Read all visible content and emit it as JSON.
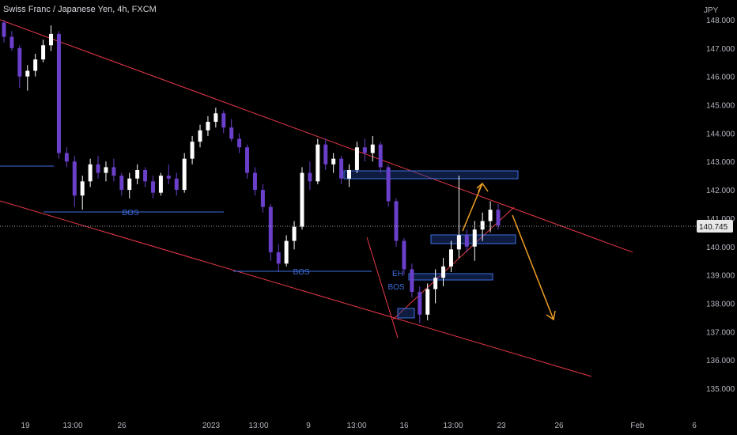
{
  "header": {
    "title": "Swiss Franc / Japanese Yen, 4h, FXCM",
    "currency": "JPY"
  },
  "chart_data": {
    "type": "candlestick",
    "symbol": "CHFJPY",
    "ylim": [
      134.5,
      148.2
    ],
    "y_ticks": [
      "148.000",
      "147.000",
      "146.000",
      "145.000",
      "144.000",
      "143.000",
      "142.000",
      "141.000",
      "140.000",
      "139.000",
      "138.000",
      "137.000",
      "136.000",
      "135.000"
    ],
    "x_ticks": [
      "19",
      "13:00",
      "26",
      "2023",
      "13:00",
      "9",
      "13:00",
      "16",
      "13:00",
      "23",
      "26",
      "Feb",
      "6"
    ],
    "last_price": "140.745",
    "colors": {
      "up": "#ffffff",
      "down": "#6a3fc9",
      "channel": "#e8394a",
      "projection": "#f0a024",
      "annotation": "#3d6fe0",
      "zone": "#1f3f8f"
    },
    "candles": [
      [
        147.9,
        148.0,
        147.2,
        147.4
      ],
      [
        147.4,
        147.6,
        146.9,
        147.0
      ],
      [
        147.0,
        147.1,
        145.6,
        146.0
      ],
      [
        146.0,
        146.4,
        145.5,
        146.2
      ],
      [
        146.2,
        146.8,
        146.0,
        146.6
      ],
      [
        146.6,
        147.3,
        146.5,
        147.1
      ],
      [
        147.1,
        147.8,
        146.9,
        147.5
      ],
      [
        147.5,
        147.6,
        143.1,
        143.3
      ],
      [
        143.3,
        143.5,
        142.8,
        143.0
      ],
      [
        143.0,
        143.2,
        141.4,
        141.8
      ],
      [
        141.8,
        142.5,
        141.3,
        142.3
      ],
      [
        142.3,
        143.1,
        142.1,
        142.9
      ],
      [
        142.9,
        143.2,
        142.4,
        142.6
      ],
      [
        142.6,
        143.0,
        142.3,
        142.8
      ],
      [
        142.8,
        143.1,
        142.3,
        142.5
      ],
      [
        142.5,
        142.6,
        141.8,
        142.0
      ],
      [
        142.0,
        142.6,
        141.7,
        142.4
      ],
      [
        142.4,
        142.9,
        142.2,
        142.7
      ],
      [
        142.7,
        142.8,
        142.1,
        142.3
      ],
      [
        142.3,
        142.5,
        141.7,
        141.9
      ],
      [
        141.9,
        142.6,
        141.8,
        142.5
      ],
      [
        142.5,
        142.9,
        142.2,
        142.4
      ],
      [
        142.4,
        142.6,
        141.8,
        142.0
      ],
      [
        142.0,
        143.3,
        141.9,
        143.1
      ],
      [
        143.1,
        143.9,
        142.9,
        143.7
      ],
      [
        143.7,
        144.3,
        143.5,
        144.1
      ],
      [
        144.1,
        144.6,
        143.9,
        144.4
      ],
      [
        144.4,
        144.9,
        144.2,
        144.7
      ],
      [
        144.7,
        144.8,
        144.0,
        144.2
      ],
      [
        144.2,
        144.5,
        143.7,
        143.8
      ],
      [
        143.8,
        144.0,
        143.3,
        143.5
      ],
      [
        143.5,
        143.6,
        142.4,
        142.6
      ],
      [
        142.6,
        142.8,
        141.8,
        142.0
      ],
      [
        142.0,
        142.2,
        141.2,
        141.4
      ],
      [
        141.4,
        141.5,
        139.5,
        139.8
      ],
      [
        139.8,
        140.1,
        139.1,
        139.4
      ],
      [
        139.4,
        140.4,
        139.3,
        140.2
      ],
      [
        140.2,
        140.9,
        139.9,
        140.7
      ],
      [
        140.7,
        142.8,
        140.6,
        142.6
      ],
      [
        142.6,
        143.0,
        142.0,
        142.3
      ],
      [
        142.3,
        143.8,
        142.2,
        143.6
      ],
      [
        143.6,
        143.8,
        142.7,
        142.9
      ],
      [
        142.9,
        143.3,
        142.6,
        143.1
      ],
      [
        143.1,
        143.2,
        142.2,
        142.4
      ],
      [
        142.4,
        142.9,
        142.1,
        142.7
      ],
      [
        142.7,
        143.7,
        142.6,
        143.5
      ],
      [
        143.5,
        143.8,
        143.0,
        143.3
      ],
      [
        143.3,
        143.9,
        143.0,
        143.6
      ],
      [
        143.6,
        143.7,
        142.6,
        142.8
      ],
      [
        142.8,
        142.9,
        141.4,
        141.6
      ],
      [
        141.6,
        141.7,
        140.0,
        140.2
      ],
      [
        140.2,
        140.3,
        139.0,
        139.2
      ],
      [
        139.2,
        139.4,
        138.2,
        138.4
      ],
      [
        138.4,
        138.6,
        137.3,
        137.6
      ],
      [
        137.6,
        138.7,
        137.4,
        138.5
      ],
      [
        138.5,
        139.2,
        138.0,
        138.9
      ],
      [
        138.9,
        139.6,
        138.6,
        139.3
      ],
      [
        139.3,
        140.2,
        139.1,
        139.9
      ],
      [
        139.9,
        142.5,
        139.6,
        140.4
      ],
      [
        140.4,
        140.6,
        139.8,
        140.0
      ],
      [
        140.0,
        140.9,
        139.5,
        140.6
      ],
      [
        140.6,
        141.2,
        140.2,
        140.9
      ],
      [
        140.9,
        141.6,
        140.5,
        141.3
      ],
      [
        141.3,
        141.5,
        140.6,
        140.745
      ]
    ],
    "overlays": {
      "channel_upper": [
        [
          0,
          148.0
        ],
        [
          800,
          139.8
        ]
      ],
      "channel_lower": [
        [
          0,
          254.0
        ],
        [
          748,
          476.0
        ]
      ],
      "wedge": [
        [
          497,
          404
        ],
        [
          650,
          262
        ]
      ],
      "zones": [
        [
          435,
          216,
          655,
          226
        ],
        [
          545,
          297,
          652,
          308
        ],
        [
          517,
          346,
          623,
          354
        ],
        [
          503,
          390,
          524,
          402
        ]
      ],
      "levels": [
        [
          0,
          210,
          68,
          210
        ],
        [
          55,
          268,
          283,
          268
        ],
        [
          295,
          343,
          470,
          343
        ]
      ],
      "projection_up": [
        [
          585,
          292
        ],
        [
          610,
          232
        ],
        [
          617,
          242
        ]
      ],
      "projection_down": [
        [
          648,
          272
        ],
        [
          700,
          404
        ]
      ]
    },
    "annotations": [
      {
        "label": "BOS",
        "x": 165,
        "y": 268
      },
      {
        "label": "BOS",
        "x": 381,
        "y": 343
      },
      {
        "label": "EH",
        "x": 503,
        "y": 345
      },
      {
        "label": "BOS",
        "x": 501,
        "y": 362
      }
    ]
  }
}
